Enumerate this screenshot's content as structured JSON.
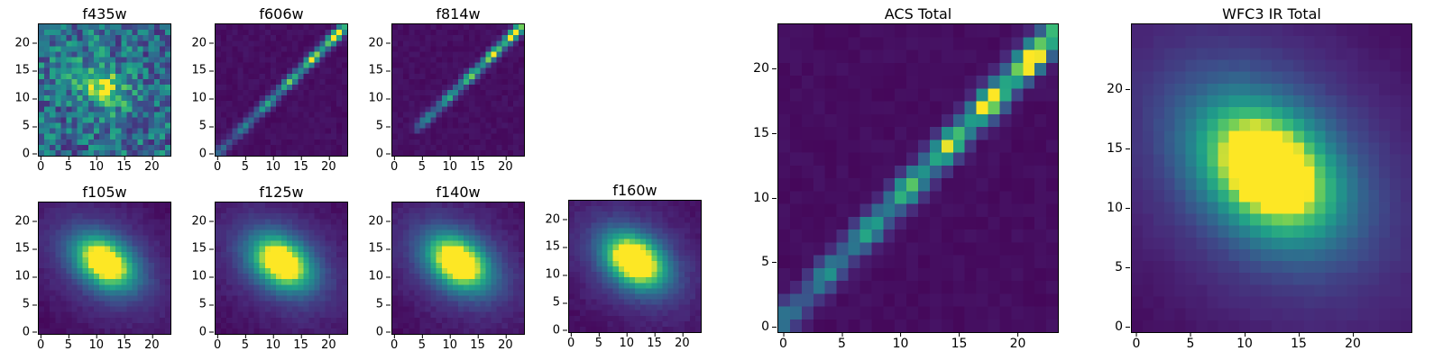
{
  "chart_data": {
    "type": "heatmap",
    "description": "Grid of astronomical image cutouts of one source in different HST filters, rendered with the viridis colormap. Top row: ACS optical bands (f435w noisy faint blob, f606w and f814w edge-on diagonal streaks). Bottom row: WFC3 IR bands (f105w, f125w, f140w, f160w smooth elliptical blobs). Right: two larger stacked panels, ACS Total (diagonal streak) and WFC3 IR Total (smooth elliptical blob).",
    "background_color": "#ffffff",
    "axes_color": "#000000",
    "colormap": {
      "name": "viridis",
      "stops": [
        [
          0.0,
          [
            68,
            1,
            84
          ]
        ],
        [
          0.125,
          [
            72,
            40,
            120
          ]
        ],
        [
          0.25,
          [
            62,
            74,
            137
          ]
        ],
        [
          0.375,
          [
            49,
            104,
            142
          ]
        ],
        [
          0.5,
          [
            38,
            130,
            142
          ]
        ],
        [
          0.625,
          [
            31,
            158,
            137
          ]
        ],
        [
          0.75,
          [
            53,
            183,
            121
          ]
        ],
        [
          0.875,
          [
            109,
            205,
            89
          ]
        ],
        [
          1.0,
          [
            253,
            231,
            37
          ]
        ]
      ]
    },
    "panels": [
      {
        "title": "f435w",
        "n": 24,
        "xticks": [
          0,
          5,
          10,
          15,
          20
        ],
        "yticks": [
          0,
          5,
          10,
          15,
          20
        ],
        "xlim": [
          -0.5,
          23.5
        ],
        "ylim": [
          -0.5,
          23.5
        ],
        "model": {
          "kind": "blob",
          "cx": 11,
          "cy": 12,
          "sx": 2.6,
          "sy": 1.9,
          "theta": -35,
          "amp": 0.5,
          "halo": 0.15,
          "bg": 0.4,
          "noise": 0.55,
          "seed": 11
        }
      },
      {
        "title": "f606w",
        "n": 24,
        "xticks": [
          0,
          5,
          10,
          15,
          20
        ],
        "yticks": [
          0,
          5,
          10,
          15,
          20
        ],
        "xlim": [
          -0.5,
          23.5
        ],
        "ylim": [
          -0.5,
          23.5
        ],
        "model": {
          "kind": "streak",
          "x0": -1,
          "y0": -1,
          "x1": 24,
          "y1": 24,
          "w": 0.62,
          "amp": 1.35,
          "bg": 0.045,
          "minB": 0.25,
          "gradPow": 1.2,
          "beads": 6,
          "beadAmp": 0.5,
          "phase": 1.0,
          "noise": 0.05,
          "seed": 5
        }
      },
      {
        "title": "f814w",
        "n": 24,
        "xticks": [
          0,
          5,
          10,
          15,
          20
        ],
        "yticks": [
          0,
          5,
          10,
          15,
          20
        ],
        "xlim": [
          -0.5,
          23.5
        ],
        "ylim": [
          -0.5,
          23.5
        ],
        "model": {
          "kind": "streak",
          "x0": 4,
          "y0": 4.5,
          "x1": 24,
          "y1": 24,
          "w": 0.6,
          "amp": 1.3,
          "bg": 0.045,
          "minB": 0.35,
          "gradPow": 1.0,
          "beads": 5,
          "beadAmp": 0.45,
          "phase": 0.5,
          "noise": 0.05,
          "seed": 9
        }
      },
      {
        "title": "f105w",
        "n": 24,
        "xticks": [
          0,
          5,
          10,
          15,
          20
        ],
        "yticks": [
          0,
          5,
          10,
          15,
          20
        ],
        "xlim": [
          -0.5,
          23.5
        ],
        "ylim": [
          -0.5,
          23.5
        ],
        "model": {
          "kind": "blob",
          "cx": 11.5,
          "cy": 12.5,
          "sx": 4.0,
          "sy": 2.7,
          "theta": -35,
          "amp": 1.05,
          "halo": 0.25,
          "bg": 0.03,
          "noise": 0.05,
          "seed": 21
        }
      },
      {
        "title": "f125w",
        "n": 24,
        "xticks": [
          0,
          5,
          10,
          15,
          20
        ],
        "yticks": [
          0,
          5,
          10,
          15,
          20
        ],
        "xlim": [
          -0.5,
          23.5
        ],
        "ylim": [
          -0.5,
          23.5
        ],
        "model": {
          "kind": "blob",
          "cx": 11.5,
          "cy": 12.5,
          "sx": 4.0,
          "sy": 2.8,
          "theta": -35,
          "amp": 1.05,
          "halo": 0.25,
          "bg": 0.03,
          "noise": 0.05,
          "seed": 22
        }
      },
      {
        "title": "f140w",
        "n": 24,
        "xticks": [
          0,
          5,
          10,
          15,
          20
        ],
        "yticks": [
          0,
          5,
          10,
          15,
          20
        ],
        "xlim": [
          -0.5,
          23.5
        ],
        "ylim": [
          -0.5,
          23.5
        ],
        "model": {
          "kind": "blob",
          "cx": 11.5,
          "cy": 12.5,
          "sx": 4.1,
          "sy": 2.8,
          "theta": -35,
          "amp": 1.1,
          "halo": 0.25,
          "bg": 0.03,
          "noise": 0.05,
          "seed": 23
        }
      },
      {
        "title": "f160w",
        "n": 24,
        "xticks": [
          0,
          5,
          10,
          15,
          20
        ],
        "yticks": [
          0,
          5,
          10,
          15,
          20
        ],
        "xlim": [
          -0.5,
          23.5
        ],
        "ylim": [
          -0.5,
          23.5
        ],
        "model": {
          "kind": "blob",
          "cx": 11.5,
          "cy": 12.5,
          "sx": 4.0,
          "sy": 2.8,
          "theta": -35,
          "amp": 1.15,
          "halo": 0.25,
          "bg": 0.03,
          "noise": 0.05,
          "seed": 24
        }
      },
      {
        "title": "ACS Total",
        "n": 24,
        "xticks": [
          0,
          5,
          10,
          15,
          20
        ],
        "yticks": [
          0,
          5,
          10,
          15,
          20
        ],
        "xlim": [
          -0.5,
          23.5
        ],
        "ylim": [
          -0.5,
          23.5
        ],
        "model": {
          "kind": "streak",
          "x0": -0.5,
          "y0": 0,
          "x1": 24,
          "y1": 23.5,
          "w": 0.75,
          "amp": 1.35,
          "bg": 0.04,
          "minB": 0.3,
          "gradPow": 1.1,
          "beads": 7,
          "beadAmp": 0.45,
          "phase": 2.0,
          "noise": 0.04,
          "seed": 31
        }
      },
      {
        "title": "WFC3 IR Total",
        "n": 26,
        "xticks": [
          0,
          5,
          10,
          15,
          20
        ],
        "yticks": [
          0,
          5,
          10,
          15,
          20
        ],
        "xlim": [
          -0.5,
          25.5
        ],
        "ylim": [
          -0.5,
          25.5
        ],
        "model": {
          "kind": "blob",
          "cx": 12.2,
          "cy": 13.2,
          "sx": 4.6,
          "sy": 3.2,
          "theta": -35,
          "amp": 1.1,
          "halo": 0.3,
          "bg": 0.03,
          "noise": 0.02,
          "seed": 41
        }
      }
    ]
  }
}
